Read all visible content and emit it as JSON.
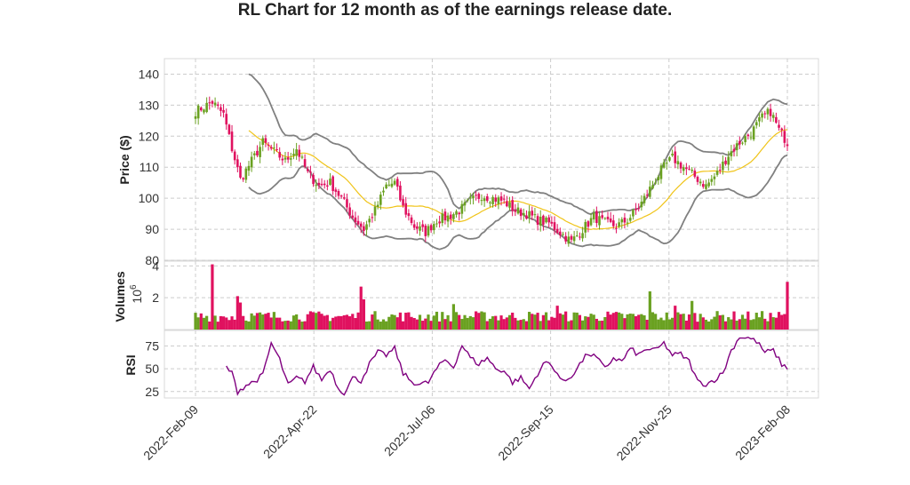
{
  "chart_data": {
    "type": "candlestick",
    "title": "RL Chart for 12 month as of the earnings release date.",
    "colors": {
      "up": "#6aa121",
      "down": "#e0115f",
      "sma": "#f0c419",
      "bollinger": "#808080",
      "rsi": "#800080",
      "grid": "#cccccc"
    },
    "x_ticks": [
      "2022-Feb-09",
      "2022-Apr-22",
      "2022-Jul-06",
      "2022-Sep-15",
      "2022-Nov-25",
      "2023-Feb-08"
    ],
    "price_panel": {
      "ylabel": "Price ($)",
      "ylim": [
        80,
        145
      ],
      "yticks": [
        80,
        90,
        100,
        110,
        120,
        130,
        140
      ],
      "close_anchors": [
        [
          0,
          128
        ],
        [
          6,
          131
        ],
        [
          10,
          127
        ],
        [
          13,
          116
        ],
        [
          16,
          106
        ],
        [
          20,
          112
        ],
        [
          24,
          118
        ],
        [
          28,
          115
        ],
        [
          32,
          112
        ],
        [
          36,
          116
        ],
        [
          40,
          108
        ],
        [
          44,
          104
        ],
        [
          48,
          105
        ],
        [
          52,
          100
        ],
        [
          56,
          94
        ],
        [
          60,
          90
        ],
        [
          64,
          96
        ],
        [
          68,
          104
        ],
        [
          71,
          105
        ],
        [
          74,
          97
        ],
        [
          78,
          91
        ],
        [
          82,
          89
        ],
        [
          86,
          93
        ],
        [
          90,
          94
        ],
        [
          94,
          96
        ],
        [
          98,
          99
        ],
        [
          102,
          101
        ],
        [
          106,
          100
        ],
        [
          110,
          99
        ],
        [
          114,
          96
        ],
        [
          118,
          95
        ],
        [
          122,
          93
        ],
        [
          126,
          92
        ],
        [
          130,
          89
        ],
        [
          134,
          86
        ],
        [
          138,
          90
        ],
        [
          142,
          94
        ],
        [
          146,
          92
        ],
        [
          150,
          91
        ],
        [
          154,
          93
        ],
        [
          158,
          97
        ],
        [
          162,
          103
        ],
        [
          166,
          109
        ],
        [
          170,
          113
        ],
        [
          174,
          110
        ],
        [
          178,
          107
        ],
        [
          182,
          104
        ],
        [
          186,
          108
        ],
        [
          190,
          114
        ],
        [
          194,
          118
        ],
        [
          198,
          121
        ],
        [
          202,
          126
        ],
        [
          205,
          128
        ],
        [
          208,
          122
        ],
        [
          211,
          118
        ]
      ]
    },
    "volume_panel": {
      "ylabel": "Volumes",
      "scale_label": "10",
      "scale_exponent": "6",
      "ylim": [
        0,
        4.3
      ],
      "yticks": [
        2,
        4
      ],
      "base_level": 0.9,
      "spikes": [
        [
          6,
          4.1
        ],
        [
          15,
          2.1
        ],
        [
          16,
          1.7
        ],
        [
          59,
          2.7
        ],
        [
          60,
          1.9
        ],
        [
          92,
          1.6
        ],
        [
          129,
          1.5
        ],
        [
          162,
          2.4
        ],
        [
          171,
          1.5
        ],
        [
          177,
          1.8
        ],
        [
          211,
          3.0
        ]
      ]
    },
    "rsi_panel": {
      "ylabel": "RSI",
      "ylim": [
        18,
        92
      ],
      "yticks": [
        25,
        50,
        75
      ],
      "anchors": [
        [
          11,
          52
        ],
        [
          13,
          45
        ],
        [
          15,
          25
        ],
        [
          18,
          32
        ],
        [
          21,
          36
        ],
        [
          24,
          43
        ],
        [
          27,
          78
        ],
        [
          30,
          60
        ],
        [
          33,
          32
        ],
        [
          36,
          40
        ],
        [
          39,
          36
        ],
        [
          42,
          52
        ],
        [
          45,
          38
        ],
        [
          48,
          50
        ],
        [
          51,
          28
        ],
        [
          53,
          24
        ],
        [
          56,
          40
        ],
        [
          59,
          37
        ],
        [
          62,
          55
        ],
        [
          65,
          68
        ],
        [
          68,
          65
        ],
        [
          71,
          72
        ],
        [
          74,
          45
        ],
        [
          77,
          36
        ],
        [
          80,
          33
        ],
        [
          83,
          35
        ],
        [
          86,
          50
        ],
        [
          89,
          60
        ],
        [
          92,
          52
        ],
        [
          95,
          76
        ],
        [
          98,
          62
        ],
        [
          101,
          55
        ],
        [
          104,
          62
        ],
        [
          107,
          50
        ],
        [
          110,
          48
        ],
        [
          113,
          35
        ],
        [
          116,
          40
        ],
        [
          119,
          28
        ],
        [
          122,
          45
        ],
        [
          125,
          58
        ],
        [
          128,
          50
        ],
        [
          131,
          35
        ],
        [
          134,
          42
        ],
        [
          137,
          55
        ],
        [
          140,
          67
        ],
        [
          143,
          62
        ],
        [
          146,
          50
        ],
        [
          149,
          62
        ],
        [
          152,
          58
        ],
        [
          155,
          72
        ],
        [
          158,
          65
        ],
        [
          161,
          72
        ],
        [
          164,
          70
        ],
        [
          167,
          78
        ],
        [
          170,
          65
        ],
        [
          173,
          66
        ],
        [
          176,
          58
        ],
        [
          179,
          36
        ],
        [
          182,
          33
        ],
        [
          185,
          38
        ],
        [
          188,
          45
        ],
        [
          191,
          70
        ],
        [
          194,
          85
        ],
        [
          197,
          84
        ],
        [
          200,
          80
        ],
        [
          203,
          68
        ],
        [
          206,
          70
        ],
        [
          209,
          55
        ],
        [
          211,
          50
        ]
      ]
    },
    "n_days": 212,
    "sma_window": 20,
    "bollinger_k": 2,
    "rsi_period": 14
  }
}
